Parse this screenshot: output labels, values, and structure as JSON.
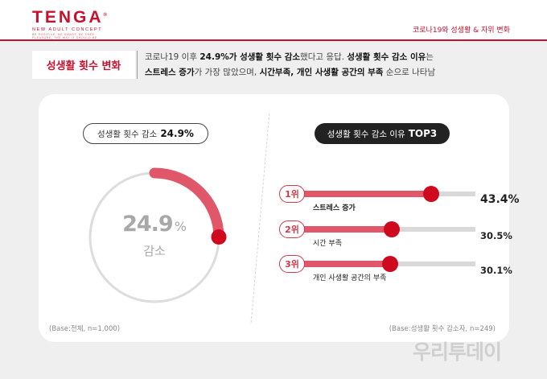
{
  "header": {
    "logo": {
      "word": "TENGA",
      "registered": "®",
      "subtitle": "NEW ADULT CONCEPT",
      "tagline_1": "BE POSITIVE, BE SMART, BE FREE",
      "tagline_2": "PLEASURE, THE WAY IT SHOULD BE"
    },
    "topic": "코로나19와 성생활 & 자위 변화"
  },
  "section": {
    "label": "성생활 횟수 변화",
    "summary_line1_a": "코로나19 이후 ",
    "summary_line1_b": "24.9%가 성생활 횟수 감소",
    "summary_line1_c": "했다고 응답. ",
    "summary_line1_d": "성생활 횟수 감소 이유",
    "summary_line1_e": "는",
    "summary_line2_a": "스트레스 증가",
    "summary_line2_b": "가 가장 많았으며, ",
    "summary_line2_c": "시간부족, 개인 사생활 공간의 부족",
    "summary_line2_d": " 순으로 나타남"
  },
  "chart_data": [
    {
      "type": "pie",
      "title_text": "성생활 횟수 감소",
      "title_value": "24.9%",
      "value_percent": 24.9,
      "center_value": "24.9",
      "center_unit": "%",
      "center_label": "감소",
      "base": "(Base:전체, n=1,000)",
      "colors": {
        "filled": "#e0576a",
        "track": "#dddddd",
        "knob": "#cf0a1e"
      }
    },
    {
      "type": "bar",
      "title_text": "성생활 횟수 감소 이유",
      "title_bold": "TOP3",
      "categories": [
        "스트레스 증가",
        "시간 부족",
        "개인 사생활 공간의 부족"
      ],
      "ranks": [
        "1위",
        "2위",
        "3위"
      ],
      "values": [
        43.4,
        30.5,
        30.1
      ],
      "value_labels": [
        "43.4%",
        "30.5%",
        "30.1%"
      ],
      "base": "(Base:성생활 횟수 감소자, n=249)",
      "colors": {
        "bar": "#e0576a",
        "track": "#d9d9d9",
        "knob": "#cf0a1e",
        "rank": "#d0384a"
      }
    }
  ],
  "watermark": "우리투데이"
}
